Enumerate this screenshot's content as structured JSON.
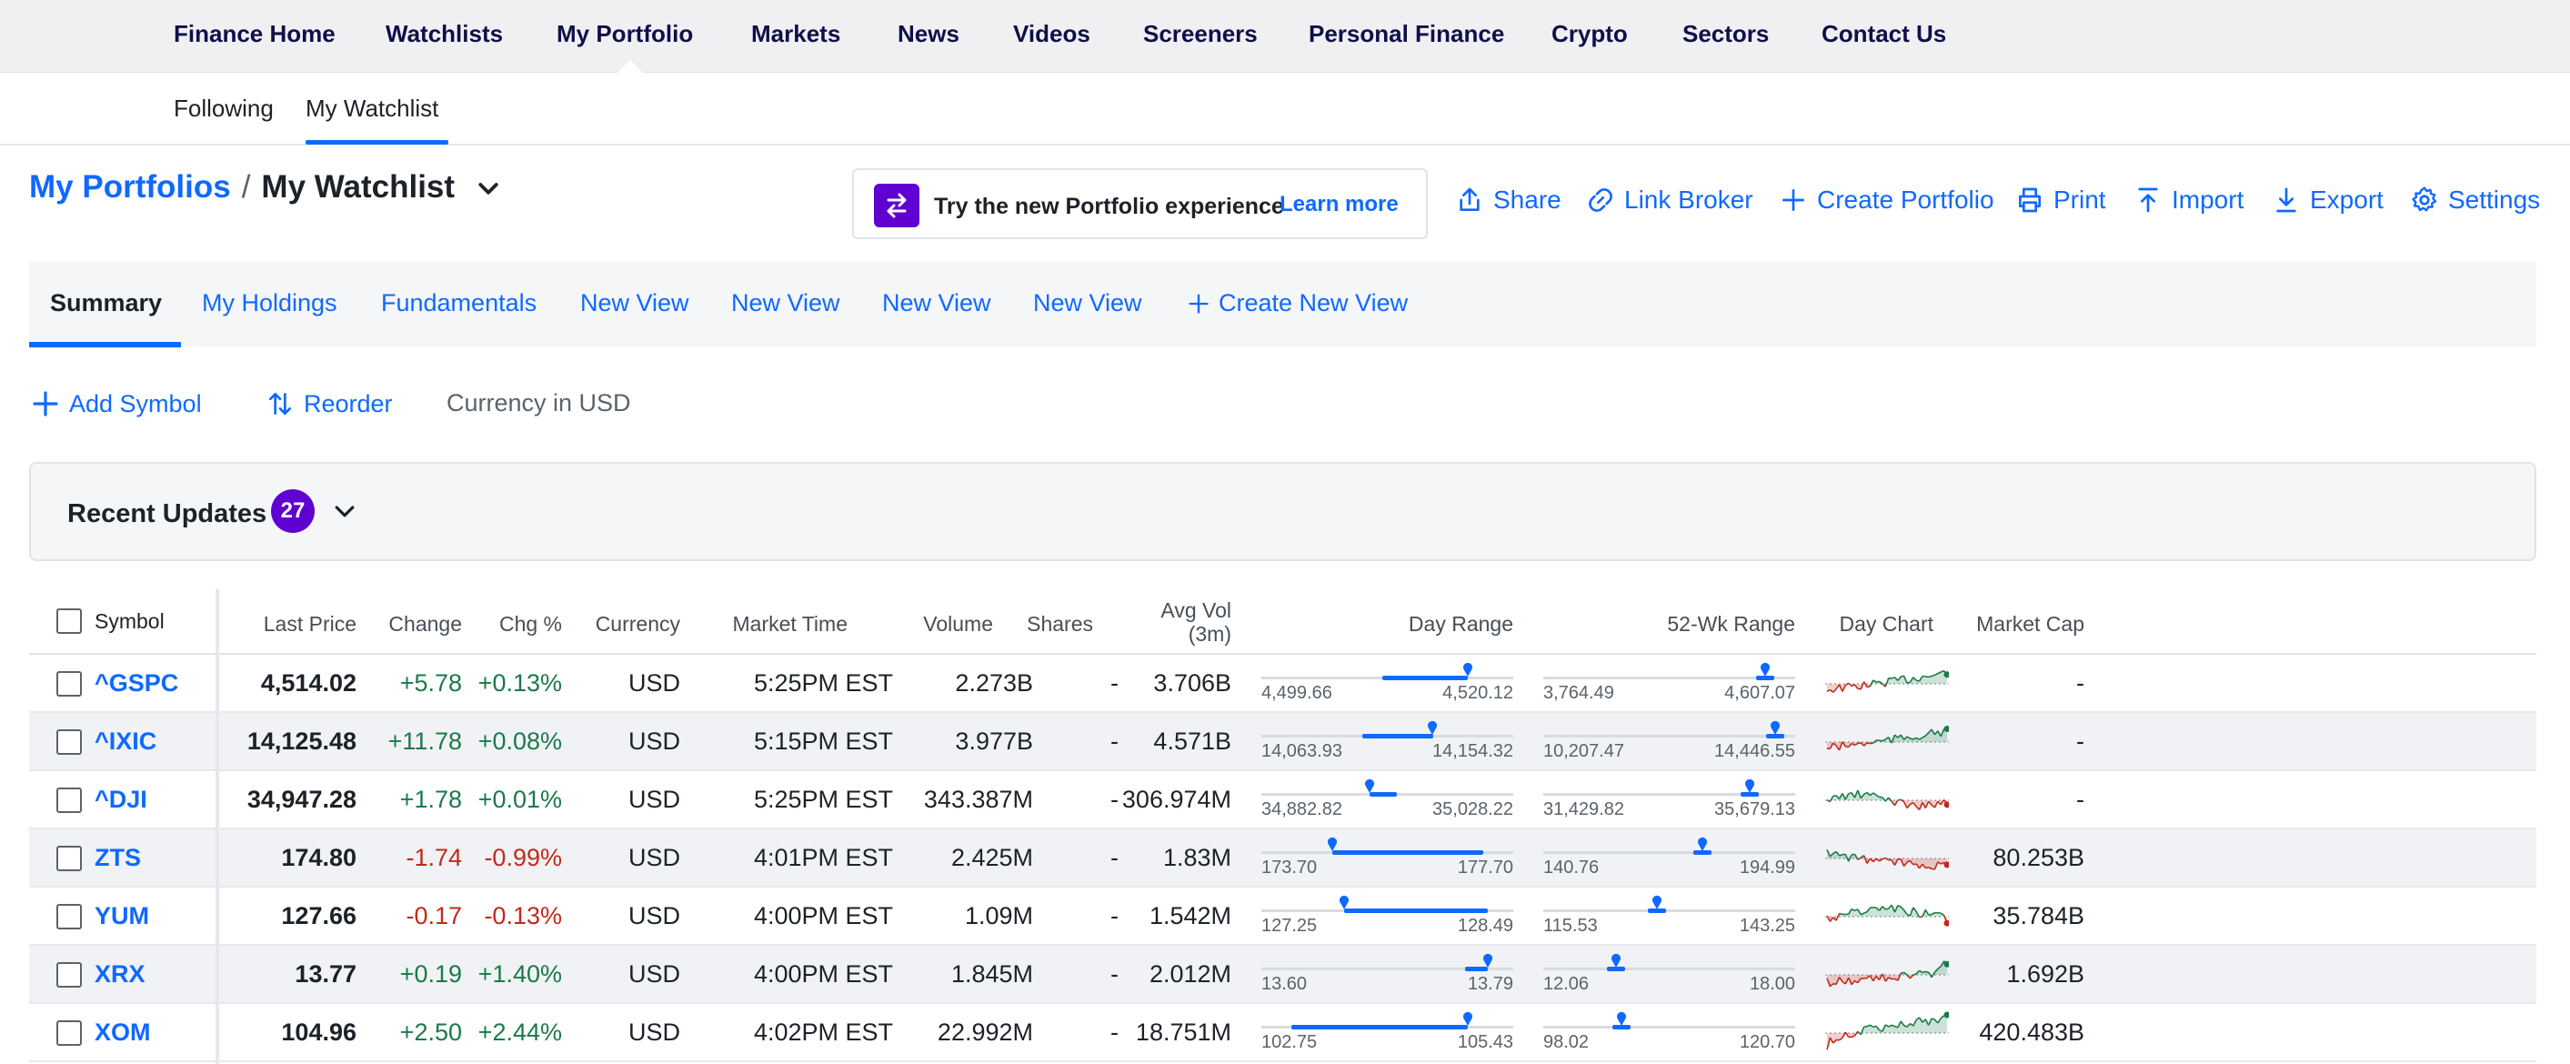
{
  "topnav": {
    "items": [
      "Finance Home",
      "Watchlists",
      "My Portfolio",
      "Markets",
      "News",
      "Videos",
      "Screeners",
      "Personal Finance",
      "Crypto",
      "Sectors",
      "Contact Us"
    ],
    "active": "My Portfolio"
  },
  "subnav": {
    "items": [
      "Following",
      "My Watchlist"
    ],
    "active": "My Watchlist"
  },
  "breadcrumb": {
    "parent": "My Portfolios",
    "separator": "/",
    "current": "My Watchlist"
  },
  "promo": {
    "text": "Try the new Portfolio experience",
    "link": "Learn more"
  },
  "actions": {
    "share": "Share",
    "link_broker": "Link Broker",
    "create_portfolio": "Create Portfolio",
    "print": "Print",
    "import": "Import",
    "export": "Export",
    "settings": "Settings"
  },
  "view_tabs": [
    "Summary",
    "My Holdings",
    "Fundamentals",
    "New View",
    "New View",
    "New View",
    "New View",
    "Create New View"
  ],
  "toolbar": {
    "add_symbol": "Add Symbol",
    "reorder": "Reorder",
    "currency": "Currency in USD"
  },
  "recent_updates": {
    "title": "Recent Updates",
    "count": "27"
  },
  "table": {
    "headers": {
      "symbol": "Symbol",
      "last_price": "Last Price",
      "change": "Change",
      "chg_pct": "Chg %",
      "currency": "Currency",
      "market_time": "Market Time",
      "volume": "Volume",
      "shares": "Shares",
      "avg_vol_1": "Avg Vol",
      "avg_vol_2": "(3m)",
      "day_range": "Day Range",
      "wk52_range": "52-Wk Range",
      "day_chart": "Day Chart",
      "market_cap": "Market Cap"
    },
    "rows": [
      {
        "symbol": "^GSPC",
        "last_price": "4,514.02",
        "change": "+5.78",
        "chg_pct": "+0.13%",
        "currency": "USD",
        "market_time": "5:25PM EST",
        "volume": "2.273B",
        "shares": "-",
        "avg_vol": "3.706B",
        "day_low": "4,499.66",
        "day_high": "4,520.12",
        "day_fill": [
          0.48,
          0.82
        ],
        "day_pos": 0.82,
        "wk_low": "3,764.49",
        "wk_high": "4,607.07",
        "wk_pos": 0.88,
        "trend": "up",
        "market_cap": "-"
      },
      {
        "symbol": "^IXIC",
        "last_price": "14,125.48",
        "change": "+11.78",
        "chg_pct": "+0.08%",
        "currency": "USD",
        "market_time": "5:15PM EST",
        "volume": "3.977B",
        "shares": "-",
        "avg_vol": "4.571B",
        "day_low": "14,063.93",
        "day_high": "14,154.32",
        "day_fill": [
          0.4,
          0.68
        ],
        "day_pos": 0.68,
        "wk_low": "10,207.47",
        "wk_high": "14,446.55",
        "wk_pos": 0.92,
        "trend": "up",
        "market_cap": "-"
      },
      {
        "symbol": "^DJI",
        "last_price": "34,947.28",
        "change": "+1.78",
        "chg_pct": "+0.01%",
        "currency": "USD",
        "market_time": "5:25PM EST",
        "volume": "343.387M",
        "shares": "-",
        "avg_vol": "306.974M",
        "day_low": "34,882.82",
        "day_high": "35,028.22",
        "day_fill": [
          0.43,
          0.54
        ],
        "day_pos": 0.43,
        "wk_low": "31,429.82",
        "wk_high": "35,679.13",
        "wk_pos": 0.82,
        "trend": "flat",
        "market_cap": "-"
      },
      {
        "symbol": "ZTS",
        "last_price": "174.80",
        "change": "-1.74",
        "chg_pct": "-0.99%",
        "currency": "USD",
        "market_time": "4:01PM EST",
        "volume": "2.425M",
        "shares": "-",
        "avg_vol": "1.83M",
        "day_low": "173.70",
        "day_high": "177.70",
        "day_fill": [
          0.28,
          0.88
        ],
        "day_pos": 0.28,
        "wk_low": "140.76",
        "wk_high": "194.99",
        "wk_pos": 0.63,
        "trend": "down",
        "market_cap": "80.253B"
      },
      {
        "symbol": "YUM",
        "last_price": "127.66",
        "change": "-0.17",
        "chg_pct": "-0.13%",
        "currency": "USD",
        "market_time": "4:00PM EST",
        "volume": "1.09M",
        "shares": "-",
        "avg_vol": "1.542M",
        "day_low": "127.25",
        "day_high": "128.49",
        "day_fill": [
          0.33,
          0.9
        ],
        "day_pos": 0.33,
        "wk_low": "115.53",
        "wk_high": "143.25",
        "wk_pos": 0.45,
        "trend": "mixed",
        "market_cap": "35.784B"
      },
      {
        "symbol": "XRX",
        "last_price": "13.77",
        "change": "+0.19",
        "chg_pct": "+1.40%",
        "currency": "USD",
        "market_time": "4:00PM EST",
        "volume": "1.845M",
        "shares": "-",
        "avg_vol": "2.012M",
        "day_low": "13.60",
        "day_high": "13.79",
        "day_fill": [
          0.81,
          0.9
        ],
        "day_pos": 0.9,
        "wk_low": "12.06",
        "wk_high": "18.00",
        "wk_pos": 0.29,
        "trend": "up2",
        "market_cap": "1.692B"
      },
      {
        "symbol": "XOM",
        "last_price": "104.96",
        "change": "+2.50",
        "chg_pct": "+2.44%",
        "currency": "USD",
        "market_time": "4:02PM EST",
        "volume": "22.992M",
        "shares": "-",
        "avg_vol": "18.751M",
        "day_low": "102.75",
        "day_high": "105.43",
        "day_fill": [
          0.12,
          0.82
        ],
        "day_pos": 0.82,
        "wk_low": "98.02",
        "wk_high": "120.70",
        "wk_pos": 0.31,
        "trend": "strongup",
        "market_cap": "420.483B"
      }
    ]
  },
  "colors": {
    "accent": "#0f69ff",
    "brand_purple": "#6001d2",
    "positive": "#1a7a49",
    "negative": "#c4281c",
    "nav_text": "#0f0f4a"
  },
  "icons": [
    "share-icon",
    "link-icon",
    "plus-icon",
    "print-icon",
    "import-icon",
    "export-icon",
    "gear-icon",
    "chevron-down-icon",
    "swap-icon",
    "reorder-icon"
  ]
}
